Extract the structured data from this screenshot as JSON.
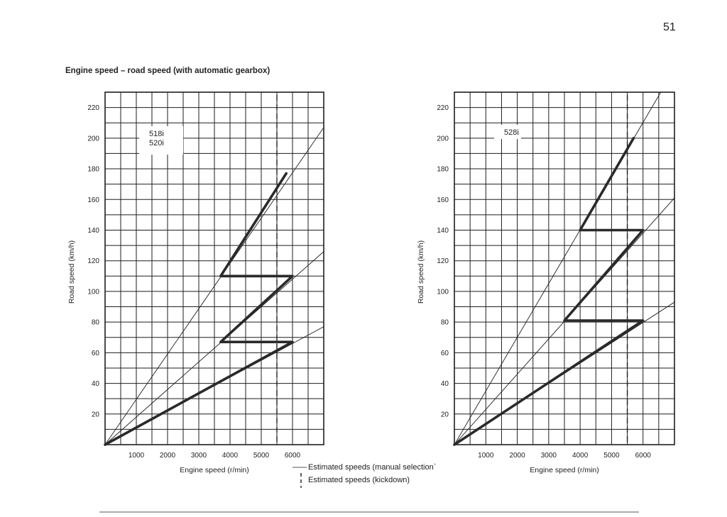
{
  "page": {
    "number": "51",
    "title": "Engine speed – road speed (with automatic gearbox)"
  },
  "legend": {
    "manual": "Estimated speeds (manual selection`",
    "kickdown": "Estimated speeds (kickdown)"
  },
  "chart_data": [
    {
      "type": "line",
      "title": "Engine speed – road speed (with automatic gearbox)",
      "model_label": [
        "518i",
        "520i"
      ],
      "xlabel": "Engine speed (r/min)",
      "ylabel": "Road speed (km/h)",
      "xlim": [
        0,
        7000
      ],
      "ylim": [
        0,
        230
      ],
      "x_ticks": [
        1000,
        2000,
        3000,
        4000,
        5000,
        6000
      ],
      "y_ticks": [
        20,
        40,
        60,
        80,
        100,
        120,
        140,
        160,
        180,
        200,
        220
      ],
      "grid": true,
      "kickdown_rpm": 5500,
      "gear_lines": [
        {
          "gear": 1,
          "end": [
            7000,
            77
          ]
        },
        {
          "gear": 2,
          "end": [
            7000,
            126
          ]
        },
        {
          "gear": 3,
          "end": [
            7000,
            207
          ]
        }
      ],
      "shift_path": [
        [
          0,
          0
        ],
        [
          6000,
          67
        ],
        [
          3700,
          67
        ],
        [
          6000,
          110
        ],
        [
          3700,
          110
        ],
        [
          5800,
          177
        ]
      ]
    },
    {
      "type": "line",
      "title": "",
      "model_label": [
        "528i"
      ],
      "xlabel": "Engine speed (r/min)",
      "ylabel": "Road speed (km/h)",
      "xlim": [
        0,
        7000
      ],
      "ylim": [
        0,
        230
      ],
      "x_ticks": [
        1000,
        2000,
        3000,
        4000,
        5000,
        6000
      ],
      "y_ticks": [
        20,
        40,
        60,
        80,
        100,
        120,
        140,
        160,
        180,
        200,
        220
      ],
      "grid": true,
      "kickdown_rpm": 5500,
      "gear_lines": [
        {
          "gear": 1,
          "end": [
            7000,
            93
          ]
        },
        {
          "gear": 2,
          "end": [
            7000,
            161
          ]
        },
        {
          "gear": 3,
          "end": [
            6650,
            233
          ]
        }
      ],
      "shift_path": [
        [
          0,
          0
        ],
        [
          6000,
          81
        ],
        [
          3500,
          81
        ],
        [
          6000,
          140
        ],
        [
          4000,
          140
        ],
        [
          5700,
          200
        ]
      ]
    }
  ]
}
